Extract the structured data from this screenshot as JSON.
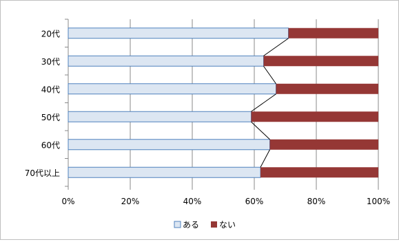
{
  "chart_data": {
    "type": "bar",
    "orientation": "horizontal",
    "stacked": "percent",
    "categories": [
      "20代",
      "30代",
      "40代",
      "50代",
      "60代",
      "70代以上"
    ],
    "series": [
      {
        "name": "ある",
        "values": [
          71,
          63,
          67,
          59,
          65,
          62
        ],
        "color": "#dce6f2"
      },
      {
        "name": "ない",
        "values": [
          29,
          37,
          33,
          41,
          35,
          38
        ],
        "color": "#953735"
      }
    ],
    "x_ticks": [
      "0%",
      "20%",
      "40%",
      "60%",
      "80%",
      "100%"
    ],
    "xlim": [
      0,
      100
    ],
    "grid": true,
    "series_lines": true,
    "legend_position": "bottom",
    "title": "",
    "xlabel": "",
    "ylabel": ""
  }
}
